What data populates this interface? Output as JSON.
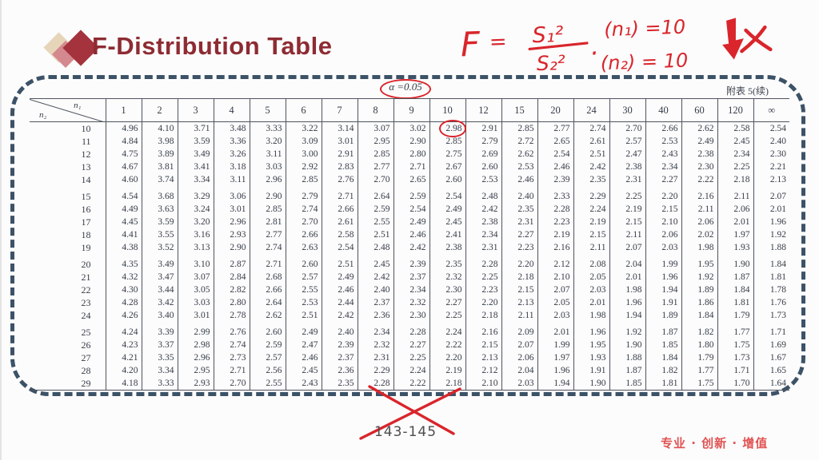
{
  "header": {
    "title": "F-Distribution Table",
    "logo_icon": "overlapping-diamonds"
  },
  "annotation": {
    "f": "F",
    "eq": "=",
    "numerator": "S₁²",
    "denominator": "S₂²",
    "dot": "·",
    "n1": "(n₁) =10",
    "n2": "(n₂) = 10",
    "arrow_icon": "bold-down-arrow",
    "mark_icon": "x-mark"
  },
  "table_meta": {
    "alpha_label": "α =0.05",
    "appendix_label": "附表 5(续)",
    "col_axis": "n₁",
    "row_axis": "n₂",
    "highlight": {
      "row": "10",
      "col": "10",
      "value": "2.98"
    }
  },
  "table": {
    "columns": [
      "1",
      "2",
      "3",
      "4",
      "5",
      "6",
      "7",
      "8",
      "9",
      "10",
      "12",
      "15",
      "20",
      "24",
      "30",
      "40",
      "60",
      "120",
      "∞"
    ],
    "rows": [
      {
        "label": "10",
        "values": [
          "4.96",
          "4.10",
          "3.71",
          "3.48",
          "3.33",
          "3.22",
          "3.14",
          "3.07",
          "3.02",
          "2.98",
          "2.91",
          "2.85",
          "2.77",
          "2.74",
          "2.70",
          "2.66",
          "2.62",
          "2.58",
          "2.54"
        ]
      },
      {
        "label": "11",
        "values": [
          "4.84",
          "3.98",
          "3.59",
          "3.36",
          "3.20",
          "3.09",
          "3.01",
          "2.95",
          "2.90",
          "2.85",
          "2.79",
          "2.72",
          "2.65",
          "2.61",
          "2.57",
          "2.53",
          "2.49",
          "2.45",
          "2.40"
        ]
      },
      {
        "label": "12",
        "values": [
          "4.75",
          "3.89",
          "3.49",
          "3.26",
          "3.11",
          "3.00",
          "2.91",
          "2.85",
          "2.80",
          "2.75",
          "2.69",
          "2.62",
          "2.54",
          "2.51",
          "2.47",
          "2.43",
          "2.38",
          "2.34",
          "2.30"
        ]
      },
      {
        "label": "13",
        "values": [
          "4.67",
          "3.81",
          "3.41",
          "3.18",
          "3.03",
          "2.92",
          "2.83",
          "2.77",
          "2.71",
          "2.67",
          "2.60",
          "2.53",
          "2.46",
          "2.42",
          "2.38",
          "2.34",
          "2.30",
          "2.25",
          "2.21"
        ]
      },
      {
        "label": "14",
        "values": [
          "4.60",
          "3.74",
          "3.34",
          "3.11",
          "2.96",
          "2.85",
          "2.76",
          "2.70",
          "2.65",
          "2.60",
          "2.53",
          "2.46",
          "2.39",
          "2.35",
          "2.31",
          "2.27",
          "2.22",
          "2.18",
          "2.13"
        ]
      },
      {
        "label": "15",
        "values": [
          "4.54",
          "3.68",
          "3.29",
          "3.06",
          "2.90",
          "2.79",
          "2.71",
          "2.64",
          "2.59",
          "2.54",
          "2.48",
          "2.40",
          "2.33",
          "2.29",
          "2.25",
          "2.20",
          "2.16",
          "2.11",
          "2.07"
        ]
      },
      {
        "label": "16",
        "values": [
          "4.49",
          "3.63",
          "3.24",
          "3.01",
          "2.85",
          "2.74",
          "2.66",
          "2.59",
          "2.54",
          "2.49",
          "2.42",
          "2.35",
          "2.28",
          "2.24",
          "2.19",
          "2.15",
          "2.11",
          "2.06",
          "2.01"
        ]
      },
      {
        "label": "17",
        "values": [
          "4.45",
          "3.59",
          "3.20",
          "2.96",
          "2.81",
          "2.70",
          "2.61",
          "2.55",
          "2.49",
          "2.45",
          "2.38",
          "2.31",
          "2.23",
          "2.19",
          "2.15",
          "2.10",
          "2.06",
          "2.01",
          "1.96"
        ]
      },
      {
        "label": "18",
        "values": [
          "4.41",
          "3.55",
          "3.16",
          "2.93",
          "2.77",
          "2.66",
          "2.58",
          "2.51",
          "2.46",
          "2.41",
          "2.34",
          "2.27",
          "2.19",
          "2.15",
          "2.11",
          "2.06",
          "2.02",
          "1.97",
          "1.92"
        ]
      },
      {
        "label": "19",
        "values": [
          "4.38",
          "3.52",
          "3.13",
          "2.90",
          "2.74",
          "2.63",
          "2.54",
          "2.48",
          "2.42",
          "2.38",
          "2.31",
          "2.23",
          "2.16",
          "2.11",
          "2.07",
          "2.03",
          "1.98",
          "1.93",
          "1.88"
        ]
      },
      {
        "label": "20",
        "values": [
          "4.35",
          "3.49",
          "3.10",
          "2.87",
          "2.71",
          "2.60",
          "2.51",
          "2.45",
          "2.39",
          "2.35",
          "2.28",
          "2.20",
          "2.12",
          "2.08",
          "2.04",
          "1.99",
          "1.95",
          "1.90",
          "1.84"
        ]
      },
      {
        "label": "21",
        "values": [
          "4.32",
          "3.47",
          "3.07",
          "2.84",
          "2.68",
          "2.57",
          "2.49",
          "2.42",
          "2.37",
          "2.32",
          "2.25",
          "2.18",
          "2.10",
          "2.05",
          "2.01",
          "1.96",
          "1.92",
          "1.87",
          "1.81"
        ]
      },
      {
        "label": "22",
        "values": [
          "4.30",
          "3.44",
          "3.05",
          "2.82",
          "2.66",
          "2.55",
          "2.46",
          "2.40",
          "2.34",
          "2.30",
          "2.23",
          "2.15",
          "2.07",
          "2.03",
          "1.98",
          "1.94",
          "1.89",
          "1.84",
          "1.78"
        ]
      },
      {
        "label": "23",
        "values": [
          "4.28",
          "3.42",
          "3.03",
          "2.80",
          "2.64",
          "2.53",
          "2.44",
          "2.37",
          "2.32",
          "2.27",
          "2.20",
          "2.13",
          "2.05",
          "2.01",
          "1.96",
          "1.91",
          "1.86",
          "1.81",
          "1.76"
        ]
      },
      {
        "label": "24",
        "values": [
          "4.26",
          "3.40",
          "3.01",
          "2.78",
          "2.62",
          "2.51",
          "2.42",
          "2.36",
          "2.30",
          "2.25",
          "2.18",
          "2.11",
          "2.03",
          "1.98",
          "1.94",
          "1.89",
          "1.84",
          "1.79",
          "1.73"
        ]
      },
      {
        "label": "25",
        "values": [
          "4.24",
          "3.39",
          "2.99",
          "2.76",
          "2.60",
          "2.49",
          "2.40",
          "2.34",
          "2.28",
          "2.24",
          "2.16",
          "2.09",
          "2.01",
          "1.96",
          "1.92",
          "1.87",
          "1.82",
          "1.77",
          "1.71"
        ]
      },
      {
        "label": "26",
        "values": [
          "4.23",
          "3.37",
          "2.98",
          "2.74",
          "2.59",
          "2.47",
          "2.39",
          "2.32",
          "2.27",
          "2.22",
          "2.15",
          "2.07",
          "1.99",
          "1.95",
          "1.90",
          "1.85",
          "1.80",
          "1.75",
          "1.69"
        ]
      },
      {
        "label": "27",
        "values": [
          "4.21",
          "3.35",
          "2.96",
          "2.73",
          "2.57",
          "2.46",
          "2.37",
          "2.31",
          "2.25",
          "2.20",
          "2.13",
          "2.06",
          "1.97",
          "1.93",
          "1.88",
          "1.84",
          "1.79",
          "1.73",
          "1.67"
        ]
      },
      {
        "label": "28",
        "values": [
          "4.20",
          "3.34",
          "2.95",
          "2.71",
          "2.56",
          "2.45",
          "2.36",
          "2.29",
          "2.24",
          "2.19",
          "2.12",
          "2.04",
          "1.96",
          "1.91",
          "1.87",
          "1.82",
          "1.77",
          "1.71",
          "1.65"
        ]
      },
      {
        "label": "29",
        "values": [
          "4.18",
          "3.33",
          "2.93",
          "2.70",
          "2.55",
          "2.43",
          "2.35",
          "2.28",
          "2.22",
          "2.18",
          "2.10",
          "2.03",
          "1.94",
          "1.90",
          "1.85",
          "1.81",
          "1.75",
          "1.70",
          "1.64"
        ]
      }
    ]
  },
  "footer": {
    "page_range": "143-145",
    "brand": "专业 · 创新 · 增值",
    "cross_icon": "red-cross-mark"
  },
  "colors": {
    "annotation_red": "#d9252b",
    "title_red": "#8e2b33",
    "border_blue": "#3c5267",
    "brand_red": "#e05252"
  }
}
